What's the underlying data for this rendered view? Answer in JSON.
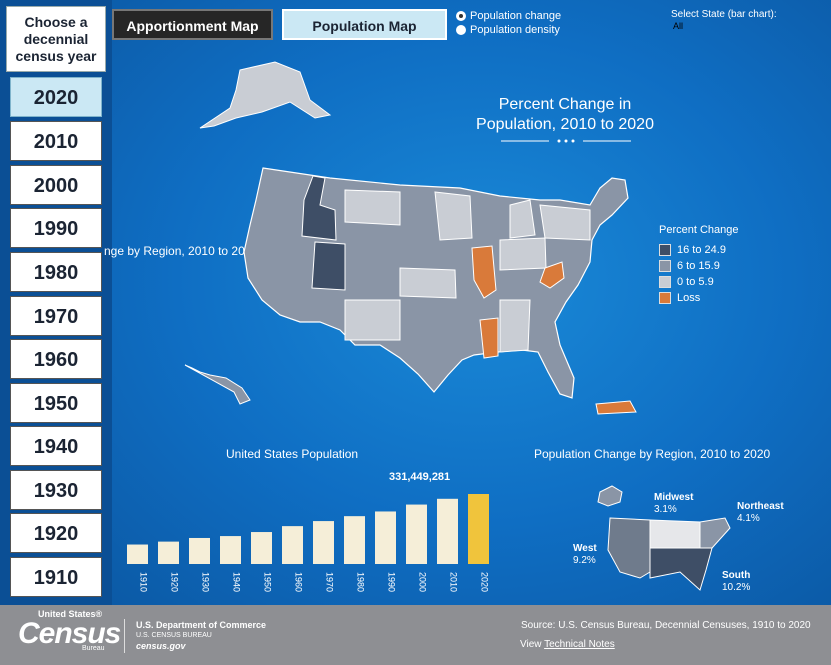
{
  "sidebar": {
    "header": "Choose a decennial census year",
    "years": [
      "2020",
      "2010",
      "2000",
      "1990",
      "1980",
      "1970",
      "1960",
      "1950",
      "1940",
      "1930",
      "1920",
      "1910"
    ],
    "selected": "2020"
  },
  "toolbar": {
    "apportionment_label": "Apportionment Map",
    "population_label": "Population Map",
    "radio_change": "Population change",
    "radio_density": "Population density",
    "state_label": "Select State (bar chart):",
    "state_value": "All"
  },
  "map": {
    "title_line1": "Percent Change in",
    "title_line2": "Population, 2010 to 2020",
    "clipped_text": "nge by Region, 2010 to 20",
    "legend": {
      "title": "Percent Change",
      "items": [
        {
          "label": "16 to 24.9",
          "color": "#3e4e66"
        },
        {
          "label": "6 to 15.9",
          "color": "#8a95a6"
        },
        {
          "label": "0 to 5.9",
          "color": "#c9cdd4"
        },
        {
          "label": "Loss",
          "color": "#d97a3a"
        }
      ]
    }
  },
  "bar_chart": {
    "title": "United States Population",
    "total_label": "331,449,281",
    "highlight_color": "#f0c43c",
    "bar_color": "#f5eed8"
  },
  "chart_data": {
    "type": "bar",
    "categories": [
      "1910",
      "1920",
      "1930",
      "1940",
      "1950",
      "1960",
      "1970",
      "1980",
      "1990",
      "2000",
      "2010",
      "2020"
    ],
    "values": [
      92.2,
      106.0,
      123.2,
      132.2,
      151.3,
      179.3,
      203.2,
      226.5,
      248.7,
      281.4,
      308.7,
      331.4
    ],
    "title": "United States Population"
  },
  "region_chart": {
    "title": "Population Change by Region, 2010 to 2020",
    "regions": [
      {
        "name": "Midwest",
        "value": "3.1%"
      },
      {
        "name": "Northeast",
        "value": "4.1%"
      },
      {
        "name": "West",
        "value": "9.2%"
      },
      {
        "name": "South",
        "value": "10.2%"
      }
    ]
  },
  "footer": {
    "logo_top": "United States®",
    "logo_main": "Census",
    "logo_bureau": "Bureau",
    "dept": "U.S. Department of Commerce",
    "dept_sub": "U.S. CENSUS BUREAU",
    "dept_url": "census.gov",
    "source": "Source: U.S. Census Bureau, Decennial Censuses, 1910 to 2020",
    "view_prefix": "View",
    "view_link": "Technical Notes"
  }
}
